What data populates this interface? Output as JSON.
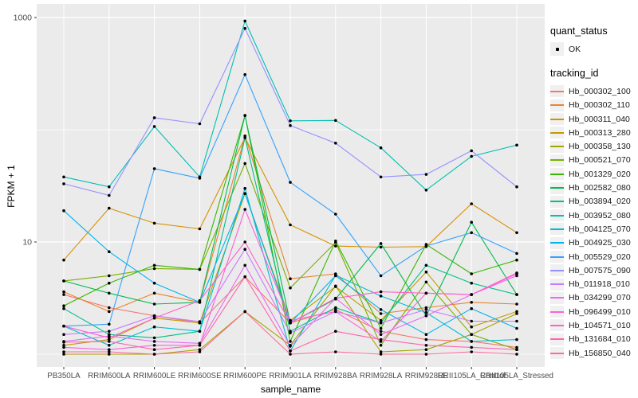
{
  "figure": {
    "background": "#ffffff",
    "panel_background": "#ebebeb",
    "grid_color": "#ffffff",
    "point_color": "#000000",
    "tick_label_color": "#4d4d4d"
  },
  "axes": {
    "x_title": "sample_name",
    "y_title": "FPKM + 1",
    "y_ticks": [
      {
        "label": "1000",
        "value": 1000
      },
      {
        "label": "10",
        "value": 10
      }
    ],
    "y_minor_values": [
      100,
      1
    ],
    "y_log_range": [
      0.93,
      1000
    ]
  },
  "legend": {
    "quant_status_title": "quant_status",
    "quant_status_items": [
      {
        "label": "OK"
      }
    ],
    "tracking_title": "tracking_id"
  },
  "chart_data": {
    "type": "line",
    "title": "",
    "xlabel": "sample_name",
    "ylabel": "FPKM + 1",
    "y_scale": "log10",
    "ylim": [
      1,
      1000
    ],
    "grid": true,
    "legend_position": "right",
    "marker": "black point on every value",
    "categories": [
      "PB350LA",
      "RRIM600LA",
      "RRIM600LE",
      "RRIM600SE",
      "RRIM600PE",
      "RRIM901LA",
      "RRIM928BA",
      "RRIM928LA",
      "RRIM928LE",
      "RRII105LA_Control",
      "RRII105LA_Stressed"
    ],
    "series": [
      {
        "name": "Hb_000302_100",
        "color": "#F8766D",
        "values": [
          3.4,
          2.6,
          2.2,
          1.9,
          4.9,
          1.9,
          2.5,
          1.6,
          1.35,
          1.3,
          1.15
        ]
      },
      {
        "name": "Hb_000302_110",
        "color": "#EA8331",
        "values": [
          3.6,
          2.4,
          3.5,
          2.9,
          88,
          4.7,
          5.2,
          2.3,
          2.6,
          2.9,
          2.8
        ]
      },
      {
        "name": "Hb_000311_040",
        "color": "#D89000",
        "values": [
          6.9,
          20,
          14.7,
          13.1,
          85,
          14.2,
          9.2,
          9.0,
          9.1,
          21.9,
          12.1
        ]
      },
      {
        "name": "Hb_000313_280",
        "color": "#C09B00",
        "values": [
          1.2,
          1.35,
          2.1,
          1.9,
          27,
          2.0,
          4.0,
          2.0,
          5.4,
          1.75,
          2.4
        ]
      },
      {
        "name": "Hb_000358_130",
        "color": "#A3A500",
        "values": [
          1.0,
          1.0,
          1.0,
          1.1,
          2.4,
          1.2,
          4.05,
          1.05,
          1.1,
          1.5,
          2.3
        ]
      },
      {
        "name": "Hb_000521_070",
        "color": "#7CAE00",
        "values": [
          4.5,
          5.0,
          5.8,
          5.7,
          50,
          3.9,
          9.9,
          1.2,
          4.4,
          1.5,
          1.1
        ]
      },
      {
        "name": "Hb_001329_020",
        "color": "#39B600",
        "values": [
          2.7,
          4.3,
          6.2,
          5.7,
          134,
          1.3,
          10.2,
          1.7,
          9.5,
          5.2,
          6.9
        ]
      },
      {
        "name": "Hb_002582_080",
        "color": "#00BB4E",
        "values": [
          4.5,
          3.5,
          2.8,
          2.9,
          134,
          1.9,
          3.1,
          9.7,
          2.2,
          15.0,
          3.4
        ]
      },
      {
        "name": "Hb_003894_020",
        "color": "#00C087",
        "values": [
          2.55,
          1.5,
          1.4,
          1.6,
          85,
          1.6,
          2.6,
          1.9,
          6.2,
          4.3,
          3.4
        ]
      },
      {
        "name": "Hb_003952_080",
        "color": "#00C0B2",
        "values": [
          38,
          31,
          107,
          38,
          930,
          120,
          121,
          69,
          29,
          58,
          73
        ]
      },
      {
        "name": "Hb_004125_070",
        "color": "#00BDD0",
        "values": [
          1.78,
          1.2,
          1.75,
          1.6,
          30,
          1.07,
          5.05,
          3.3,
          2.35,
          1.3,
          1.35
        ]
      },
      {
        "name": "Hb_004925_030",
        "color": "#00B4EF",
        "values": [
          19,
          8.2,
          4.3,
          2.9,
          27,
          1.9,
          5.0,
          2.5,
          1.5,
          2.55,
          1.7
        ]
      },
      {
        "name": "Hb_005529_020",
        "color": "#35A2FF",
        "values": [
          1.78,
          1.85,
          45,
          37,
          310,
          34,
          17.7,
          5.0,
          9.2,
          12.1,
          7.9
        ]
      },
      {
        "name": "Hb_007575_090",
        "color": "#9590FF",
        "values": [
          33,
          26,
          128,
          113,
          800,
          109,
          76,
          38,
          40,
          65,
          31
        ]
      },
      {
        "name": "Hb_011918_010",
        "color": "#C77CFF",
        "values": [
          1.5,
          1.6,
          2.2,
          1.95,
          8.6,
          1.55,
          2.4,
          1.9,
          2.5,
          1.97,
          1.97
        ]
      },
      {
        "name": "Hb_034299_070",
        "color": "#E76BF3",
        "values": [
          1.3,
          1.45,
          1.3,
          1.25,
          6.2,
          1.18,
          3.15,
          1.5,
          2.2,
          3.4,
          5.0
        ]
      },
      {
        "name": "Hb_096499_010",
        "color": "#FA62DB",
        "values": [
          1.15,
          1.1,
          1.2,
          1.2,
          19.5,
          2.0,
          2.4,
          1.3,
          3.5,
          3.4,
          5.2
        ]
      },
      {
        "name": "Hb_104571_010",
        "color": "#FF61C9",
        "values": [
          1.78,
          1.4,
          2.1,
          3.0,
          10.0,
          1.9,
          3.15,
          3.6,
          3.5,
          3.4,
          5.3
        ]
      },
      {
        "name": "Hb_131684_010",
        "color": "#FF65AE",
        "values": [
          1.28,
          1.3,
          1.1,
          1.2,
          4.9,
          1.07,
          1.6,
          1.35,
          1.2,
          1.15,
          1.1
        ]
      },
      {
        "name": "Hb_156850_040",
        "color": "#FF6A98",
        "values": [
          1.05,
          1.05,
          1.0,
          1.05,
          2.4,
          1.0,
          1.05,
          1.0,
          1.0,
          1.05,
          1.0
        ]
      }
    ]
  }
}
